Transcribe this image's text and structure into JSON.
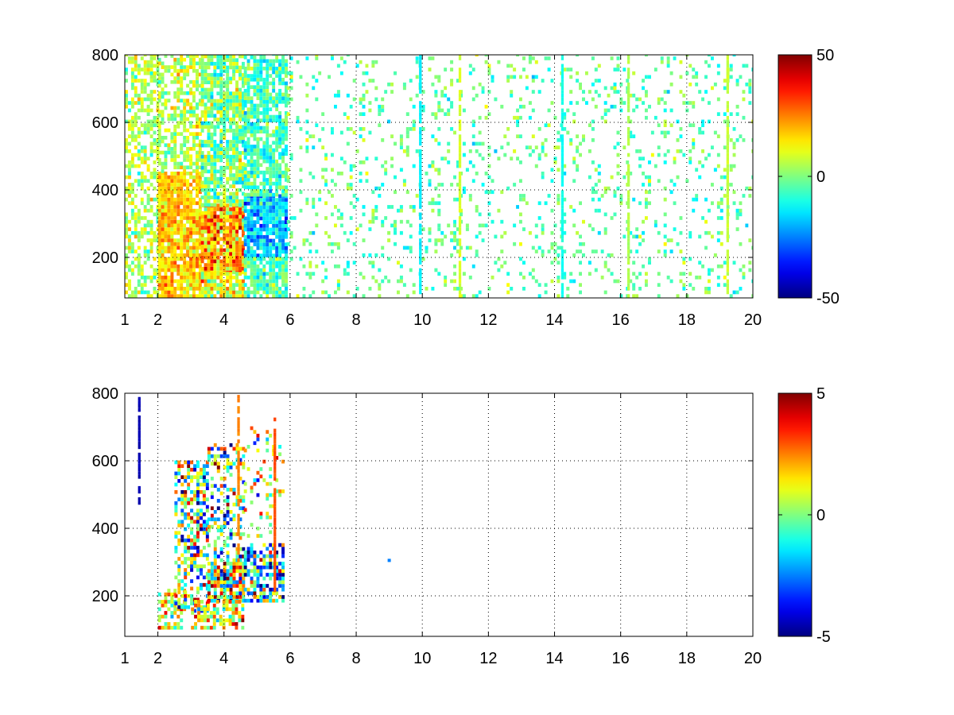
{
  "chart_data": [
    {
      "type": "heatmap",
      "title": "",
      "xlabel": "",
      "ylabel": "",
      "xlim": [
        1,
        20
      ],
      "ylim": [
        80,
        800
      ],
      "grid": true,
      "x_ticks": [
        "1",
        "2",
        "4",
        "6",
        "8",
        "10",
        "12",
        "14",
        "16",
        "18",
        "20"
      ],
      "x_tick_values": [
        1,
        2,
        4,
        6,
        8,
        10,
        12,
        14,
        16,
        18,
        20
      ],
      "y_ticks": [
        "200",
        "400",
        "600",
        "800"
      ],
      "y_tick_values": [
        200,
        400,
        600,
        800
      ],
      "colorbar": {
        "min": -50,
        "max": 50,
        "tick_labels": [
          "50",
          "0",
          "-50"
        ],
        "tick_values": [
          50,
          0,
          -50
        ],
        "colormap": "jet"
      },
      "regions": [
        {
          "x": [
            1.0,
            2.0
          ],
          "y": [
            80,
            800
          ],
          "density": 0.55,
          "mean": 5,
          "spread": 10
        },
        {
          "x": [
            2.0,
            3.3
          ],
          "y": [
            80,
            450
          ],
          "density": 0.92,
          "mean": 17,
          "spread": 9
        },
        {
          "x": [
            2.0,
            3.3
          ],
          "y": [
            450,
            800
          ],
          "density": 0.6,
          "mean": 6,
          "spread": 10
        },
        {
          "x": [
            3.3,
            4.6
          ],
          "y": [
            150,
            350
          ],
          "density": 0.95,
          "mean": 22,
          "spread": 16
        },
        {
          "x": [
            3.3,
            4.6
          ],
          "y": [
            350,
            800
          ],
          "density": 0.8,
          "mean": 0,
          "spread": 12
        },
        {
          "x": [
            3.3,
            4.6
          ],
          "y": [
            80,
            150
          ],
          "density": 0.9,
          "mean": 10,
          "spread": 14
        },
        {
          "x": [
            4.6,
            5.9
          ],
          "y": [
            200,
            380
          ],
          "density": 0.9,
          "mean": -18,
          "spread": 12
        },
        {
          "x": [
            4.6,
            5.9
          ],
          "y": [
            380,
            800
          ],
          "density": 0.75,
          "mean": -6,
          "spread": 10
        },
        {
          "x": [
            4.6,
            5.9
          ],
          "y": [
            80,
            200
          ],
          "density": 0.8,
          "mean": -4,
          "spread": 10
        },
        {
          "x": [
            5.9,
            20.0
          ],
          "y": [
            80,
            800
          ],
          "density": 0.13,
          "mean": -3,
          "spread": 9
        }
      ],
      "stripes": [
        {
          "x": 9.9,
          "y": [
            80,
            800
          ],
          "value": -14
        },
        {
          "x": 11.1,
          "y": [
            80,
            800
          ],
          "value": 9
        },
        {
          "x": 14.2,
          "y": [
            80,
            800
          ],
          "value": -11
        },
        {
          "x": 16.2,
          "y": [
            80,
            800
          ],
          "value": 5
        },
        {
          "x": 19.2,
          "y": [
            80,
            800
          ],
          "value": 7
        }
      ]
    },
    {
      "type": "heatmap",
      "title": "",
      "xlabel": "",
      "ylabel": "",
      "xlim": [
        1,
        20
      ],
      "ylim": [
        80,
        800
      ],
      "grid": true,
      "x_ticks": [
        "1",
        "2",
        "4",
        "6",
        "8",
        "10",
        "12",
        "14",
        "16",
        "18",
        "20"
      ],
      "x_tick_values": [
        1,
        2,
        4,
        6,
        8,
        10,
        12,
        14,
        16,
        18,
        20
      ],
      "y_ticks": [
        "200",
        "400",
        "600",
        "800"
      ],
      "y_tick_values": [
        200,
        400,
        600,
        800
      ],
      "colorbar": {
        "min": -5,
        "max": 5,
        "tick_labels": [
          "5",
          "0",
          "-5"
        ],
        "tick_values": [
          5,
          0,
          -5
        ],
        "colormap": "jet"
      },
      "regions": [
        {
          "x": [
            2.0,
            2.8
          ],
          "y": [
            100,
            220
          ],
          "density": 0.45,
          "mean": 1,
          "spread": 2.5
        },
        {
          "x": [
            2.5,
            3.5
          ],
          "y": [
            150,
            600
          ],
          "density": 0.5,
          "mean": 0,
          "spread": 3.5
        },
        {
          "x": [
            3.5,
            4.6
          ],
          "y": [
            180,
            300
          ],
          "density": 0.9,
          "mean": 0.5,
          "spread": 4
        },
        {
          "x": [
            3.5,
            4.6
          ],
          "y": [
            300,
            650
          ],
          "density": 0.35,
          "mean": -1,
          "spread": 3.5
        },
        {
          "x": [
            3.0,
            4.6
          ],
          "y": [
            100,
            180
          ],
          "density": 0.6,
          "mean": 1.5,
          "spread": 2
        },
        {
          "x": [
            4.6,
            5.8
          ],
          "y": [
            180,
            350
          ],
          "density": 0.65,
          "mean": -1.5,
          "spread": 3.5
        },
        {
          "x": [
            4.6,
            5.8
          ],
          "y": [
            350,
            700
          ],
          "density": 0.15,
          "mean": 0,
          "spread": 3
        }
      ],
      "stripes": [
        {
          "x": 1.4,
          "y": [
            470,
            790
          ],
          "value": -4.5
        },
        {
          "x": 4.4,
          "y": [
            300,
            790
          ],
          "value": 2.5
        },
        {
          "x": 5.5,
          "y": [
            200,
            730
          ],
          "value": 3
        }
      ],
      "points": [
        {
          "x": 9.0,
          "y": 305,
          "value": -2.5
        }
      ]
    }
  ]
}
